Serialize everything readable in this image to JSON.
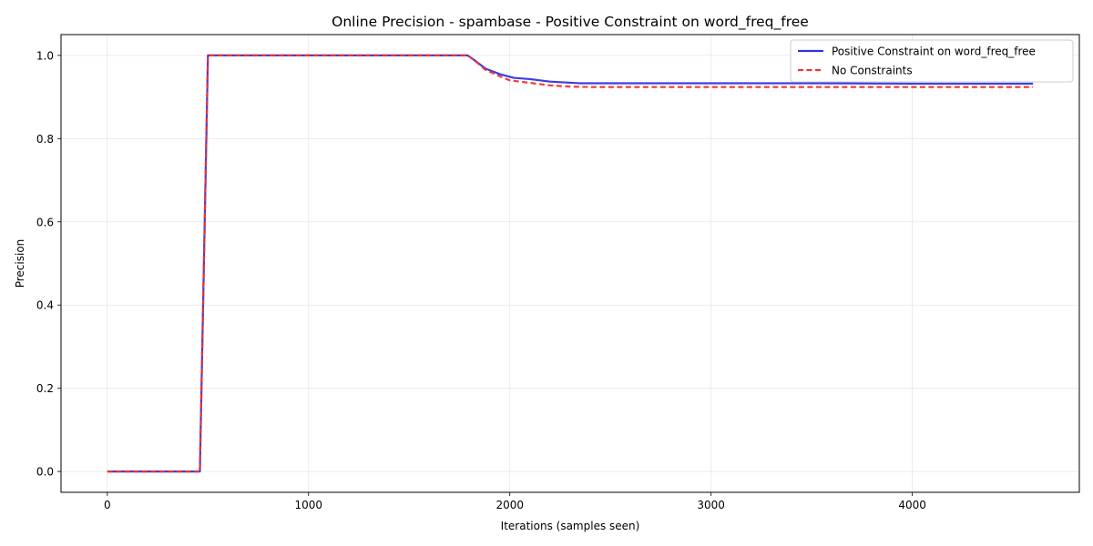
{
  "chart_data": {
    "type": "line",
    "title": "Online Precision - spambase - Positive Constraint on word_freq_free",
    "xlabel": "Iterations (samples seen)",
    "ylabel": "Precision",
    "xlim": [
      -230,
      4830
    ],
    "ylim": [
      -0.05,
      1.05
    ],
    "xticks": [
      0,
      1000,
      2000,
      3000,
      4000
    ],
    "yticks": [
      0.0,
      0.2,
      0.4,
      0.6,
      0.8,
      1.0
    ],
    "xtick_labels": [
      "0",
      "1000",
      "2000",
      "3000",
      "4000"
    ],
    "ytick_labels": [
      "0.0",
      "0.2",
      "0.4",
      "0.6",
      "0.8",
      "1.0"
    ],
    "grid": true,
    "legend_position": "top-right",
    "series": [
      {
        "name": "Positive Constraint on word_freq_free",
        "color": "#3333dd",
        "style": "solid",
        "x": [
          0,
          100,
          200,
          300,
          400,
          460,
          500,
          600,
          800,
          1000,
          1200,
          1400,
          1600,
          1790,
          1820,
          1880,
          1950,
          2020,
          2100,
          2200,
          2350,
          2500,
          3000,
          3500,
          4000,
          4600
        ],
        "y": [
          0,
          0,
          0,
          0,
          0,
          0,
          1.0,
          1.0,
          1.0,
          1.0,
          1.0,
          1.0,
          1.0,
          1.0,
          0.99,
          0.968,
          0.955,
          0.946,
          0.943,
          0.937,
          0.933,
          0.933,
          0.933,
          0.933,
          0.932,
          0.932
        ]
      },
      {
        "name": "No Constraints",
        "color": "#ee3333",
        "style": "dashed",
        "x": [
          0,
          100,
          200,
          300,
          400,
          460,
          500,
          600,
          800,
          1000,
          1200,
          1400,
          1600,
          1790,
          1820,
          1880,
          1950,
          2000,
          2100,
          2200,
          2300,
          2400,
          3000,
          3500,
          4000,
          4600
        ],
        "y": [
          0,
          0,
          0,
          0,
          0,
          0,
          1.0,
          1.0,
          1.0,
          1.0,
          1.0,
          1.0,
          1.0,
          1.0,
          0.99,
          0.965,
          0.95,
          0.94,
          0.934,
          0.928,
          0.925,
          0.924,
          0.924,
          0.924,
          0.924,
          0.924
        ]
      }
    ]
  }
}
